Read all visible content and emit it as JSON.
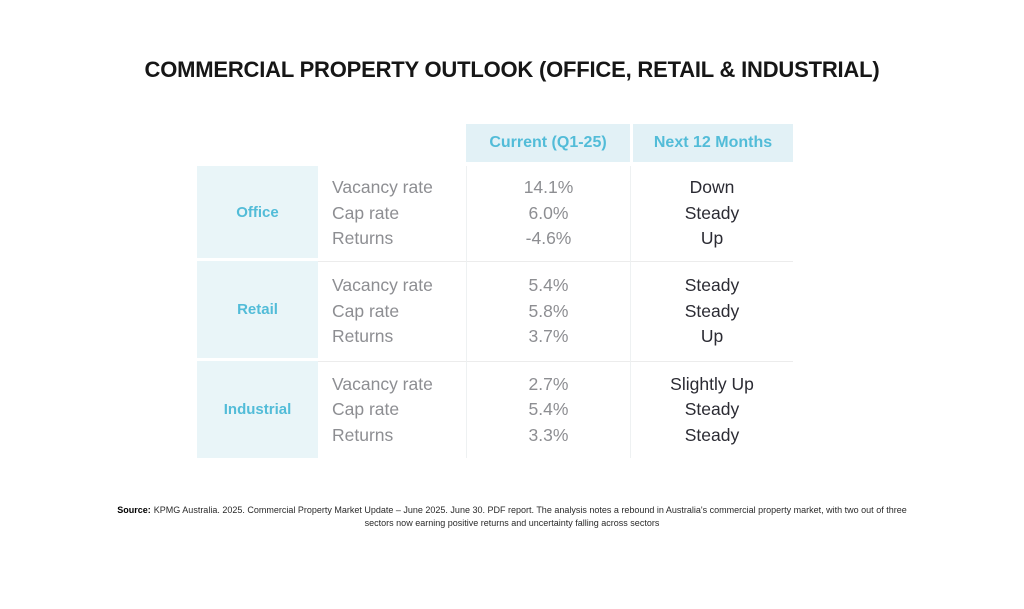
{
  "chart_data": {
    "type": "table",
    "title": "COMMERCIAL PROPERTY OUTLOOK (OFFICE, RETAIL & INDUSTRIAL)",
    "column_headers": [
      "Current (Q1-25)",
      "Next 12 Months"
    ],
    "metric_labels": [
      "Vacancy rate",
      "Cap rate",
      "Returns"
    ],
    "rows": [
      {
        "sector": "Office",
        "current": [
          "14.1%",
          "6.0%",
          "-4.6%"
        ],
        "next_12_months": [
          "Down",
          "Steady",
          "Up"
        ]
      },
      {
        "sector": "Retail",
        "current": [
          "5.4%",
          "5.8%",
          "3.7%"
        ],
        "next_12_months": [
          "Steady",
          "Steady",
          "Up"
        ]
      },
      {
        "sector": "Industrial",
        "current": [
          "2.7%",
          "5.4%",
          "3.3%"
        ],
        "next_12_months": [
          "Slightly Up",
          "Steady",
          "Steady"
        ]
      }
    ],
    "layout": {
      "grid": "light horizontal separators between sector rows, light vertical separators between value columns",
      "legend": "none"
    }
  },
  "source": {
    "label": "Source:",
    "text": "KPMG Australia. 2025. Commercial Property Market Update – June 2025. June 30. PDF report. The analysis notes a rebound in Australia's commercial property market, with two out of three sectors now earning positive returns and uncertainty falling across sectors"
  },
  "colors": {
    "header_background": "#e2f1f6",
    "sector_background": "#e9f5f8",
    "accent_teal": "#52bcd8",
    "muted_text": "#8d8e92",
    "dark_text": "#2b2b33",
    "title_text": "#161616"
  }
}
